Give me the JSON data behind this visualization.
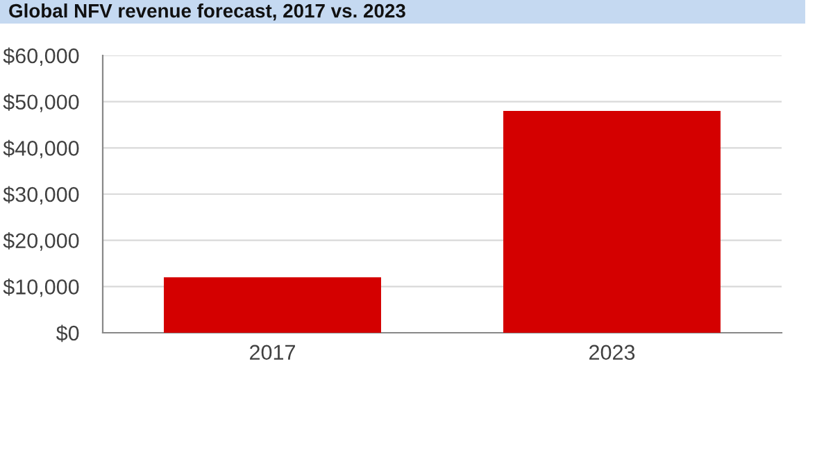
{
  "chart_data": {
    "type": "bar",
    "title": "Global NFV revenue forecast, 2017 vs. 2023",
    "categories": [
      "2017",
      "2023"
    ],
    "values": [
      12000,
      48000
    ],
    "color": "#d40000",
    "ylim": [
      0,
      60000
    ],
    "yticks": [
      {
        "value": 0,
        "label": "$0"
      },
      {
        "value": 10000,
        "label": "$10,000"
      },
      {
        "value": 20000,
        "label": "$20,000"
      },
      {
        "value": 30000,
        "label": "$30,000"
      },
      {
        "value": 40000,
        "label": "$40,000"
      },
      {
        "value": 50000,
        "label": "$50,000"
      },
      {
        "value": 60000,
        "label": "$60,000"
      }
    ],
    "grid": "y"
  }
}
